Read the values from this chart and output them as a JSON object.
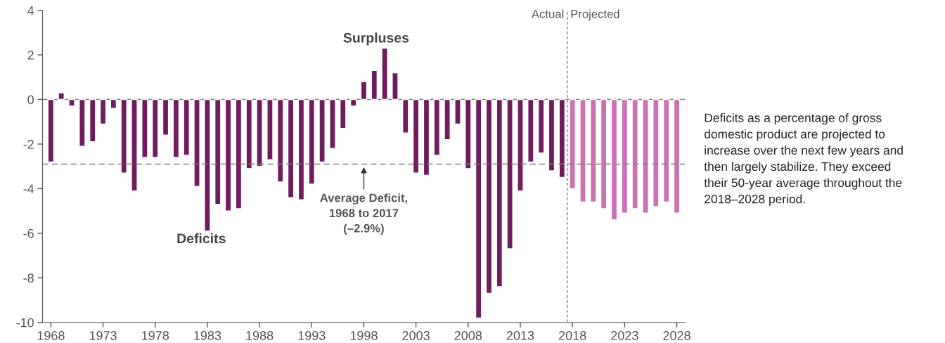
{
  "chart_data": {
    "type": "bar",
    "series": [
      {
        "color": "#6f1d5c",
        "x": [
          1968,
          1969,
          1970,
          1971,
          1972,
          1973,
          1974,
          1975,
          1976,
          1977,
          1978,
          1979,
          1980,
          1981,
          1982,
          1983,
          1984,
          1985,
          1986,
          1987,
          1988,
          1989,
          1990,
          1991,
          1992,
          1993,
          1994,
          1995,
          1996,
          1997,
          1998,
          1999,
          2000,
          2001,
          2002,
          2003,
          2004,
          2005,
          2006,
          2007,
          2008,
          2009,
          2010,
          2011,
          2012,
          2013,
          2014,
          2015,
          2016,
          2017
        ],
        "values": [
          -2.8,
          0.3,
          -0.3,
          -2.1,
          -1.9,
          -1.1,
          -0.4,
          -3.3,
          -4.1,
          -2.6,
          -2.6,
          -1.6,
          -2.6,
          -2.5,
          -3.9,
          -5.9,
          -4.7,
          -5.0,
          -4.9,
          -3.1,
          -3.0,
          -2.7,
          -3.7,
          -4.4,
          -4.5,
          -3.8,
          -2.8,
          -2.2,
          -1.3,
          -0.3,
          0.8,
          1.3,
          2.3,
          1.2,
          -1.5,
          -3.3,
          -3.4,
          -2.5,
          -1.8,
          -1.1,
          -3.1,
          -9.8,
          -8.7,
          -8.4,
          -6.7,
          -4.1,
          -2.8,
          -2.4,
          -3.2,
          -3.5
        ]
      },
      {
        "color": "#cc72b0",
        "x": [
          2018,
          2019,
          2020,
          2021,
          2022,
          2023,
          2024,
          2025,
          2026,
          2027,
          2028
        ],
        "values": [
          -4.0,
          -4.6,
          -4.6,
          -4.9,
          -5.4,
          -5.1,
          -4.9,
          -5.1,
          -4.8,
          -4.6,
          -5.1
        ]
      }
    ],
    "xlim": [
      1967.2,
      2028.8
    ],
    "xticks": [
      1968,
      1973,
      1978,
      1983,
      1988,
      1993,
      1998,
      2003,
      2008,
      2013,
      2018,
      2023,
      2028
    ],
    "ylim": [
      -10,
      4
    ],
    "yticks": [
      -10,
      -8,
      -6,
      -4,
      -2,
      0,
      2,
      4
    ],
    "grid": false,
    "ref_lines": [
      {
        "axis": "y",
        "value": 0,
        "color": "#808080",
        "line_style": "solid"
      },
      {
        "axis": "y",
        "value": -2.9,
        "color": "#808080",
        "line_style": "dashed",
        "label": "Average Deficit,\n1968 to 2017\n(–2.9%)"
      },
      {
        "axis": "x",
        "value": 2017.5,
        "color": "#808080",
        "line_style": "dashed"
      }
    ],
    "annotations": [
      "Surpluses",
      "Deficits",
      "Actual",
      "Projected",
      "Deficits as a percentage of gross\ndomestic product are projected to\nincrease over the next few years and\nthen largely stabilize. They exceed\ntheir 50-year average throughout the\n2018–2028 period."
    ]
  }
}
